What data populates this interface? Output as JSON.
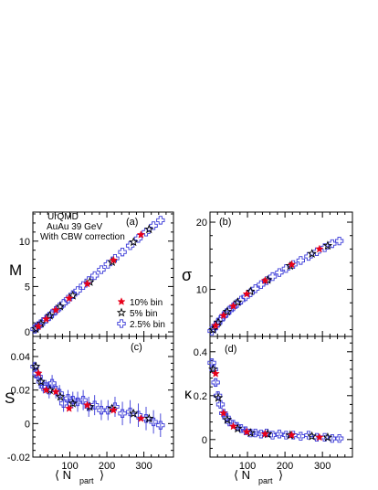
{
  "annotation": {
    "line1": "UrQMD",
    "line2": "AuAu 39 GeV",
    "line3": "With CBW correction"
  },
  "legend": [
    {
      "label": "10% bin",
      "marker": "filled-star",
      "color": "#e8001a"
    },
    {
      "label": "5% bin",
      "marker": "open-star",
      "color": "#000000"
    },
    {
      "label": "2.5% bin",
      "marker": "open-cross",
      "color": "#3a3ad8"
    }
  ],
  "x_axis": {
    "label_main": "⟨ N",
    "label_sub": "part",
    "label_end": "⟩",
    "ticks": [
      "100",
      "200",
      "300"
    ],
    "tick_values": [
      100,
      200,
      300
    ],
    "xlim": [
      0,
      380
    ]
  },
  "chart_data": [
    {
      "type": "scatter",
      "panel": "(a)",
      "ylabel": "M",
      "ylim": [
        -0.5,
        13.2
      ],
      "yticks": [
        0,
        5,
        10
      ],
      "yticklabels": [
        "0",
        "5",
        "10"
      ],
      "series": [
        {
          "name": "10% bin",
          "x": [
            15,
            36,
            62,
            98,
            147,
            218,
            292
          ],
          "y": [
            0.6,
            1.4,
            2.4,
            3.7,
            5.3,
            7.9,
            10.7
          ]
        },
        {
          "name": "5% bin",
          "x": [
            8,
            22,
            46,
            74,
            108,
            154,
            214,
            272,
            314
          ],
          "y": [
            0.35,
            0.9,
            1.8,
            2.8,
            4.0,
            5.5,
            7.7,
            9.9,
            11.3
          ]
        },
        {
          "name": "2.5% bin",
          "x": [
            5,
            10,
            15,
            21,
            28,
            36,
            44,
            52,
            62,
            72,
            83,
            95,
            108,
            121,
            136,
            151,
            167,
            185,
            203,
            222,
            242,
            263,
            285,
            306,
            326,
            345
          ],
          "y": [
            0.3,
            0.5,
            0.7,
            0.9,
            1.15,
            1.4,
            1.7,
            2.0,
            2.35,
            2.75,
            3.15,
            3.6,
            4.1,
            4.55,
            5.1,
            5.65,
            6.2,
            6.85,
            7.45,
            8.1,
            8.8,
            9.5,
            10.3,
            11.0,
            11.7,
            12.3
          ]
        }
      ]
    },
    {
      "type": "scatter",
      "panel": "(b)",
      "ylabel": "σ",
      "ylim": [
        3.0,
        21.5
      ],
      "yticks": [
        10,
        20
      ],
      "yticklabels": [
        "10",
        "20"
      ],
      "series": [
        {
          "name": "10% bin",
          "x": [
            15,
            36,
            62,
            98,
            147,
            218,
            292
          ],
          "y": [
            4.6,
            6.1,
            7.5,
            9.3,
            11.3,
            13.7,
            16.0
          ]
        },
        {
          "name": "5% bin",
          "x": [
            8,
            22,
            46,
            74,
            108,
            154,
            214,
            272,
            314
          ],
          "y": [
            4.0,
            5.1,
            6.7,
            8.1,
            9.7,
            11.4,
            13.5,
            15.3,
            16.5
          ]
        },
        {
          "name": "2.5% bin",
          "x": [
            5,
            10,
            15,
            21,
            28,
            36,
            44,
            52,
            62,
            72,
            83,
            95,
            108,
            121,
            136,
            151,
            167,
            185,
            203,
            222,
            242,
            263,
            285,
            306,
            326,
            345
          ],
          "y": [
            3.8,
            4.2,
            4.6,
            5.0,
            5.5,
            6.0,
            6.5,
            6.9,
            7.4,
            7.9,
            8.4,
            8.9,
            9.5,
            10.1,
            10.7,
            11.3,
            11.9,
            12.5,
            13.1,
            13.7,
            14.3,
            14.9,
            15.6,
            16.2,
            16.8,
            17.2
          ]
        }
      ]
    },
    {
      "type": "scatter",
      "panel": "(c)",
      "ylabel": "S",
      "ylim": [
        -0.02,
        0.052
      ],
      "yticks": [
        -0.02,
        0,
        0.02,
        0.04
      ],
      "yticklabels": [
        "-0.02",
        "0",
        "0.02",
        "0.04"
      ],
      "series": [
        {
          "name": "10% bin",
          "x": [
            15,
            36,
            62,
            98,
            147,
            218,
            292
          ],
          "y": [
            0.03,
            0.02,
            0.019,
            0.009,
            0.011,
            0.008,
            0.003
          ]
        },
        {
          "name": "5% bin",
          "x": [
            8,
            22,
            46,
            74,
            108,
            154,
            214,
            272,
            314
          ],
          "y": [
            0.034,
            0.025,
            0.02,
            0.016,
            0.012,
            0.01,
            0.009,
            0.006,
            0.003
          ]
        },
        {
          "name": "2.5% bin",
          "x": [
            5,
            10,
            15,
            21,
            28,
            36,
            44,
            52,
            62,
            72,
            83,
            95,
            108,
            121,
            136,
            151,
            167,
            185,
            203,
            222,
            242,
            263,
            285,
            306,
            326,
            345
          ],
          "y": [
            0.034,
            0.03,
            0.028,
            0.025,
            0.022,
            0.022,
            0.02,
            0.024,
            0.02,
            0.018,
            0.012,
            0.015,
            0.014,
            0.013,
            0.014,
            0.01,
            0.011,
            0.008,
            0.008,
            0.01,
            0.006,
            0.007,
            0.005,
            0.003,
            0.001,
            -0.001
          ],
          "yerr": [
            0.003,
            0.003,
            0.003,
            0.004,
            0.004,
            0.004,
            0.005,
            0.005,
            0.005,
            0.005,
            0.005,
            0.005,
            0.005,
            0.006,
            0.006,
            0.006,
            0.006,
            0.006,
            0.006,
            0.006,
            0.007,
            0.007,
            0.007,
            0.007,
            0.007,
            0.007
          ]
        }
      ]
    },
    {
      "type": "scatter",
      "panel": "(d)",
      "ylabel": "κ",
      "ylim": [
        -0.08,
        0.47
      ],
      "yticks": [
        0,
        0.2,
        0.4
      ],
      "yticklabels": [
        "0",
        "0.2",
        "0.4"
      ],
      "series": [
        {
          "name": "10% bin",
          "x": [
            15,
            36,
            62,
            98,
            147,
            218,
            292
          ],
          "y": [
            0.3,
            0.12,
            0.06,
            0.035,
            0.025,
            0.02,
            0.01
          ]
        },
        {
          "name": "5% bin",
          "x": [
            8,
            22,
            46,
            74,
            108,
            154,
            214,
            272,
            314
          ],
          "y": [
            0.32,
            0.19,
            0.09,
            0.05,
            0.03,
            0.025,
            0.02,
            0.015,
            0.01
          ]
        },
        {
          "name": "2.5% bin",
          "x": [
            5,
            10,
            15,
            21,
            28,
            36,
            44,
            52,
            62,
            72,
            83,
            95,
            108,
            121,
            136,
            151,
            167,
            185,
            203,
            222,
            242,
            263,
            285,
            306,
            326,
            345
          ],
          "y": [
            0.35,
            0.32,
            0.26,
            0.2,
            0.16,
            0.12,
            0.1,
            0.08,
            0.07,
            0.06,
            0.05,
            0.04,
            0.03,
            0.03,
            0.025,
            0.03,
            0.02,
            0.025,
            0.02,
            0.02,
            0.015,
            0.02,
            0.01,
            0.01,
            0.005,
            0.005
          ],
          "yerr": [
            0.02,
            0.02,
            0.02,
            0.02,
            0.015,
            0.015,
            0.012,
            0.012,
            0.01,
            0.01,
            0.01,
            0.01,
            0.01,
            0.01,
            0.01,
            0.01,
            0.01,
            0.01,
            0.01,
            0.01,
            0.01,
            0.01,
            0.01,
            0.01,
            0.01,
            0.01
          ]
        }
      ]
    }
  ]
}
